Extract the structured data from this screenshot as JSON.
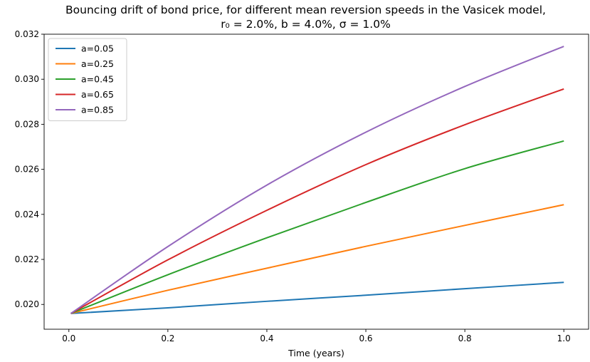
{
  "chart_data": {
    "type": "line",
    "title_line1": "Bouncing drift of bond price, for different mean reversion speeds in the Vasicek model,",
    "title_line2": "r₀ = 2.0%, b = 4.0%, σ = 1.0%",
    "xlabel": "Time (years)",
    "ylabel": "",
    "xlim": [
      -0.05,
      1.05
    ],
    "ylim": [
      0.0189,
      0.032
    ],
    "xticks": [
      "0.0",
      "0.2",
      "0.4",
      "0.6",
      "0.8",
      "1.0"
    ],
    "yticks": [
      "0.020",
      "0.022",
      "0.024",
      "0.026",
      "0.028",
      "0.030",
      "0.032"
    ],
    "grid": false,
    "legend_position": "top-left",
    "x": [
      0.004,
      0.2,
      0.4,
      0.6,
      0.8,
      1.0
    ],
    "series": [
      {
        "name": "a=0.05",
        "color": "#1f77b4",
        "values": [
          0.0196,
          0.01985,
          0.02014,
          0.02041,
          0.0207,
          0.02098
        ]
      },
      {
        "name": "a=0.25",
        "color": "#ff7f0e",
        "values": [
          0.0196,
          0.02063,
          0.02161,
          0.02258,
          0.02351,
          0.02443
        ]
      },
      {
        "name": "a=0.45",
        "color": "#2ca02c",
        "values": [
          0.0196,
          0.02132,
          0.02296,
          0.02453,
          0.02603,
          0.02726
        ]
      },
      {
        "name": "a=0.65",
        "color": "#d62728",
        "values": [
          0.0196,
          0.02198,
          0.02418,
          0.02621,
          0.02798,
          0.02957
        ]
      },
      {
        "name": "a=0.85",
        "color": "#9467bd",
        "values": [
          0.0196,
          0.02257,
          0.0253,
          0.02765,
          0.02968,
          0.03146
        ]
      }
    ]
  }
}
